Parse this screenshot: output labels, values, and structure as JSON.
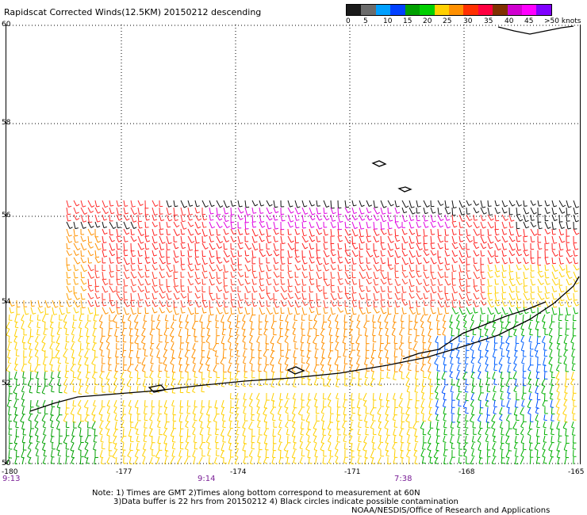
{
  "title": "Rapidscat Corrected Winds(12.5KM) 20150212 descending",
  "legend": {
    "colors": [
      "#1a1a1a",
      "#6b6b6b",
      "#00a0ff",
      "#0040ff",
      "#00a000",
      "#00d000",
      "#ffd000",
      "#ff9000",
      "#ff3000",
      "#ff0040",
      "#803000",
      "#d000d0",
      "#ff00ff",
      "#8000ff"
    ],
    "labels": [
      "0",
      "5",
      "10",
      "15",
      "20",
      "25",
      "30",
      "35",
      "40",
      "45",
      ">50 knots"
    ]
  },
  "latitude_labels": [
    "60",
    "58",
    "56",
    "54",
    "52",
    "50"
  ],
  "longitude_labels": [
    "-180",
    "-177",
    "-174",
    "-171",
    "-168",
    "-165"
  ],
  "time_labels": [
    "9:13",
    "9:14",
    "7:38"
  ],
  "notes": {
    "line1": "Note: 1) Times are GMT 2)Times along bottom correspond to measurement at 60N",
    "line2": "3)Data buffer is 22 hrs from 20150212 4) Black circles indicate possible contamination",
    "credit": "NOAA/NESDIS/Office of Research and Applications"
  }
}
